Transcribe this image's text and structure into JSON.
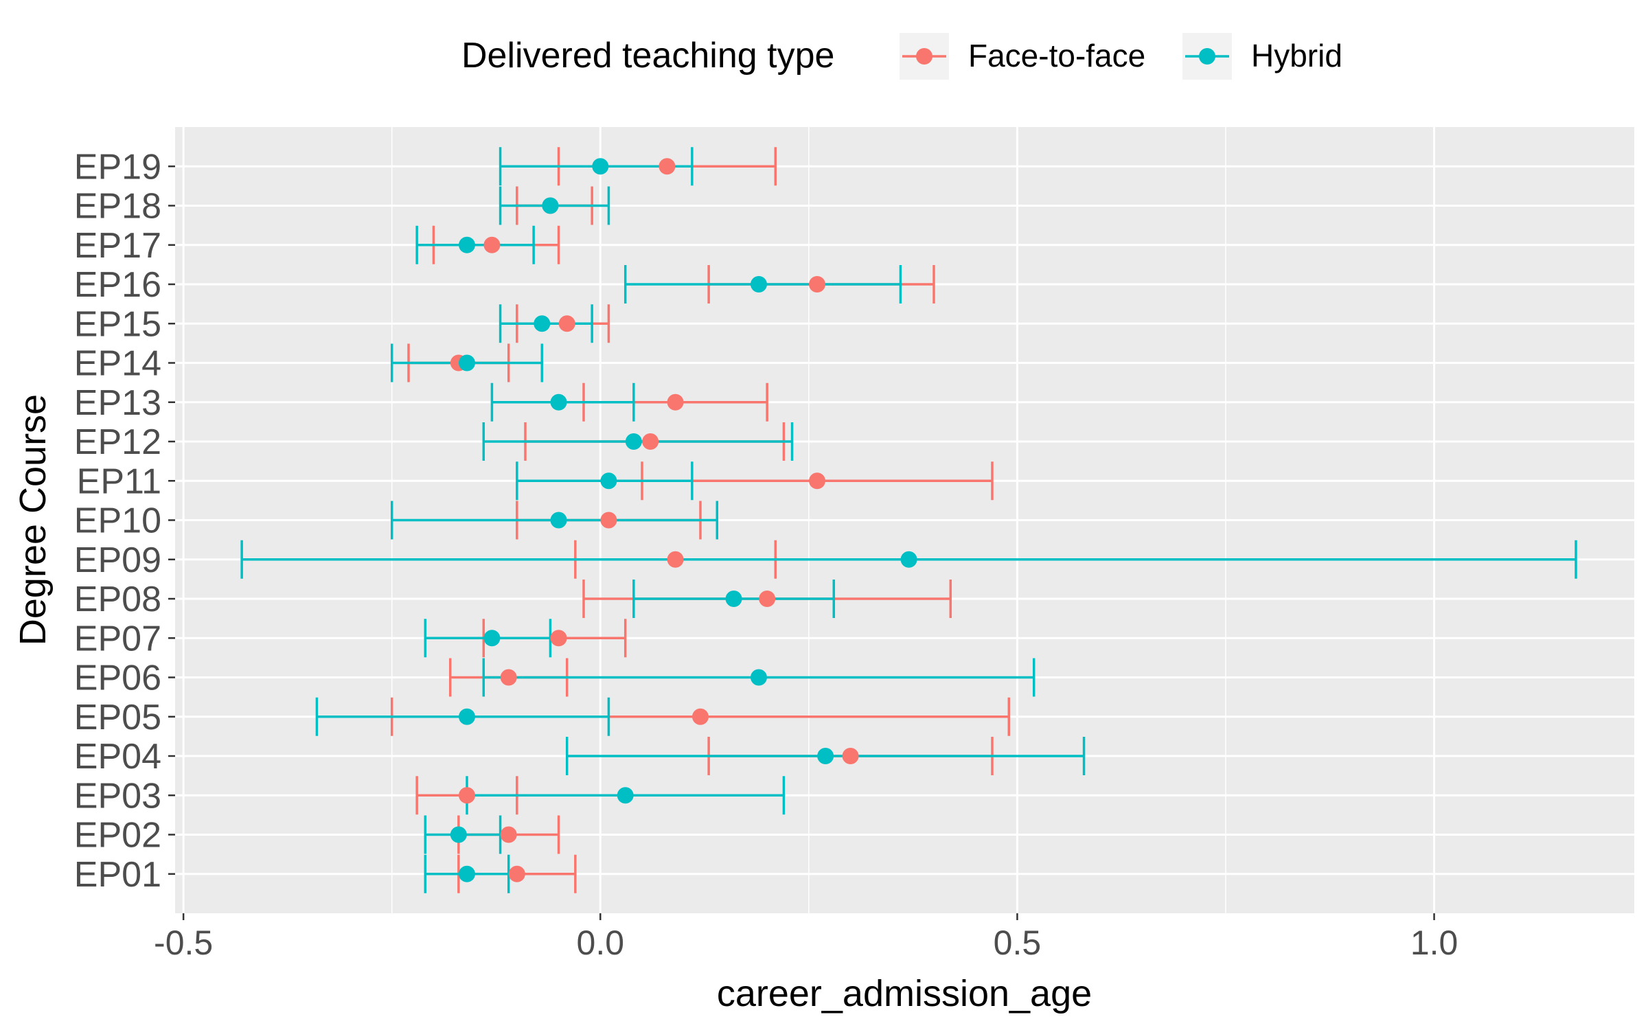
{
  "chart_data": {
    "type": "errorbar",
    "xlabel": "career_admission_age",
    "ylabel": "Degree Course",
    "xlim": [
      -0.51,
      1.24
    ],
    "x_ticks": [
      -0.5,
      0.0,
      0.5,
      1.0
    ],
    "x_tick_labels": [
      "-0.5",
      "0.0",
      "0.5",
      "1.0"
    ],
    "grid": true,
    "legend_position": "top",
    "legend_title": "Delivered teaching type",
    "categories": [
      "EP01",
      "EP02",
      "EP03",
      "EP04",
      "EP05",
      "EP06",
      "EP07",
      "EP08",
      "EP09",
      "EP10",
      "EP11",
      "EP12",
      "EP13",
      "EP14",
      "EP15",
      "EP16",
      "EP17",
      "EP18",
      "EP19"
    ],
    "series": [
      {
        "name": "Face-to-face",
        "color": "#F8766D",
        "estimate": [
          -0.1,
          -0.11,
          -0.16,
          0.3,
          0.12,
          -0.11,
          -0.05,
          0.2,
          0.09,
          0.01,
          0.26,
          0.06,
          0.09,
          -0.17,
          -0.04,
          0.26,
          -0.13,
          -0.06,
          0.08
        ],
        "lower": [
          -0.17,
          -0.17,
          -0.22,
          0.13,
          -0.25,
          -0.18,
          -0.14,
          -0.02,
          -0.03,
          -0.1,
          0.05,
          -0.09,
          -0.02,
          -0.23,
          -0.1,
          0.13,
          -0.2,
          -0.1,
          -0.05
        ],
        "upper": [
          -0.03,
          -0.05,
          -0.1,
          0.47,
          0.49,
          -0.04,
          0.03,
          0.42,
          0.21,
          0.12,
          0.47,
          0.22,
          0.2,
          -0.11,
          0.01,
          0.4,
          -0.05,
          -0.01,
          0.21
        ]
      },
      {
        "name": "Hybrid",
        "color": "#00BFC4",
        "estimate": [
          -0.16,
          -0.17,
          0.03,
          0.27,
          -0.16,
          0.19,
          -0.13,
          0.16,
          0.37,
          -0.05,
          0.01,
          0.04,
          -0.05,
          -0.16,
          -0.07,
          0.19,
          -0.16,
          -0.06,
          0.0
        ],
        "lower": [
          -0.21,
          -0.21,
          -0.16,
          -0.04,
          -0.34,
          -0.14,
          -0.21,
          0.04,
          -0.43,
          -0.25,
          -0.1,
          -0.14,
          -0.13,
          -0.25,
          -0.12,
          0.03,
          -0.22,
          -0.12,
          -0.12
        ],
        "upper": [
          -0.11,
          -0.12,
          0.22,
          0.58,
          0.01,
          0.52,
          -0.06,
          0.28,
          1.17,
          0.14,
          0.11,
          0.23,
          0.04,
          -0.07,
          -0.01,
          0.36,
          -0.08,
          0.01,
          0.11
        ]
      }
    ]
  }
}
